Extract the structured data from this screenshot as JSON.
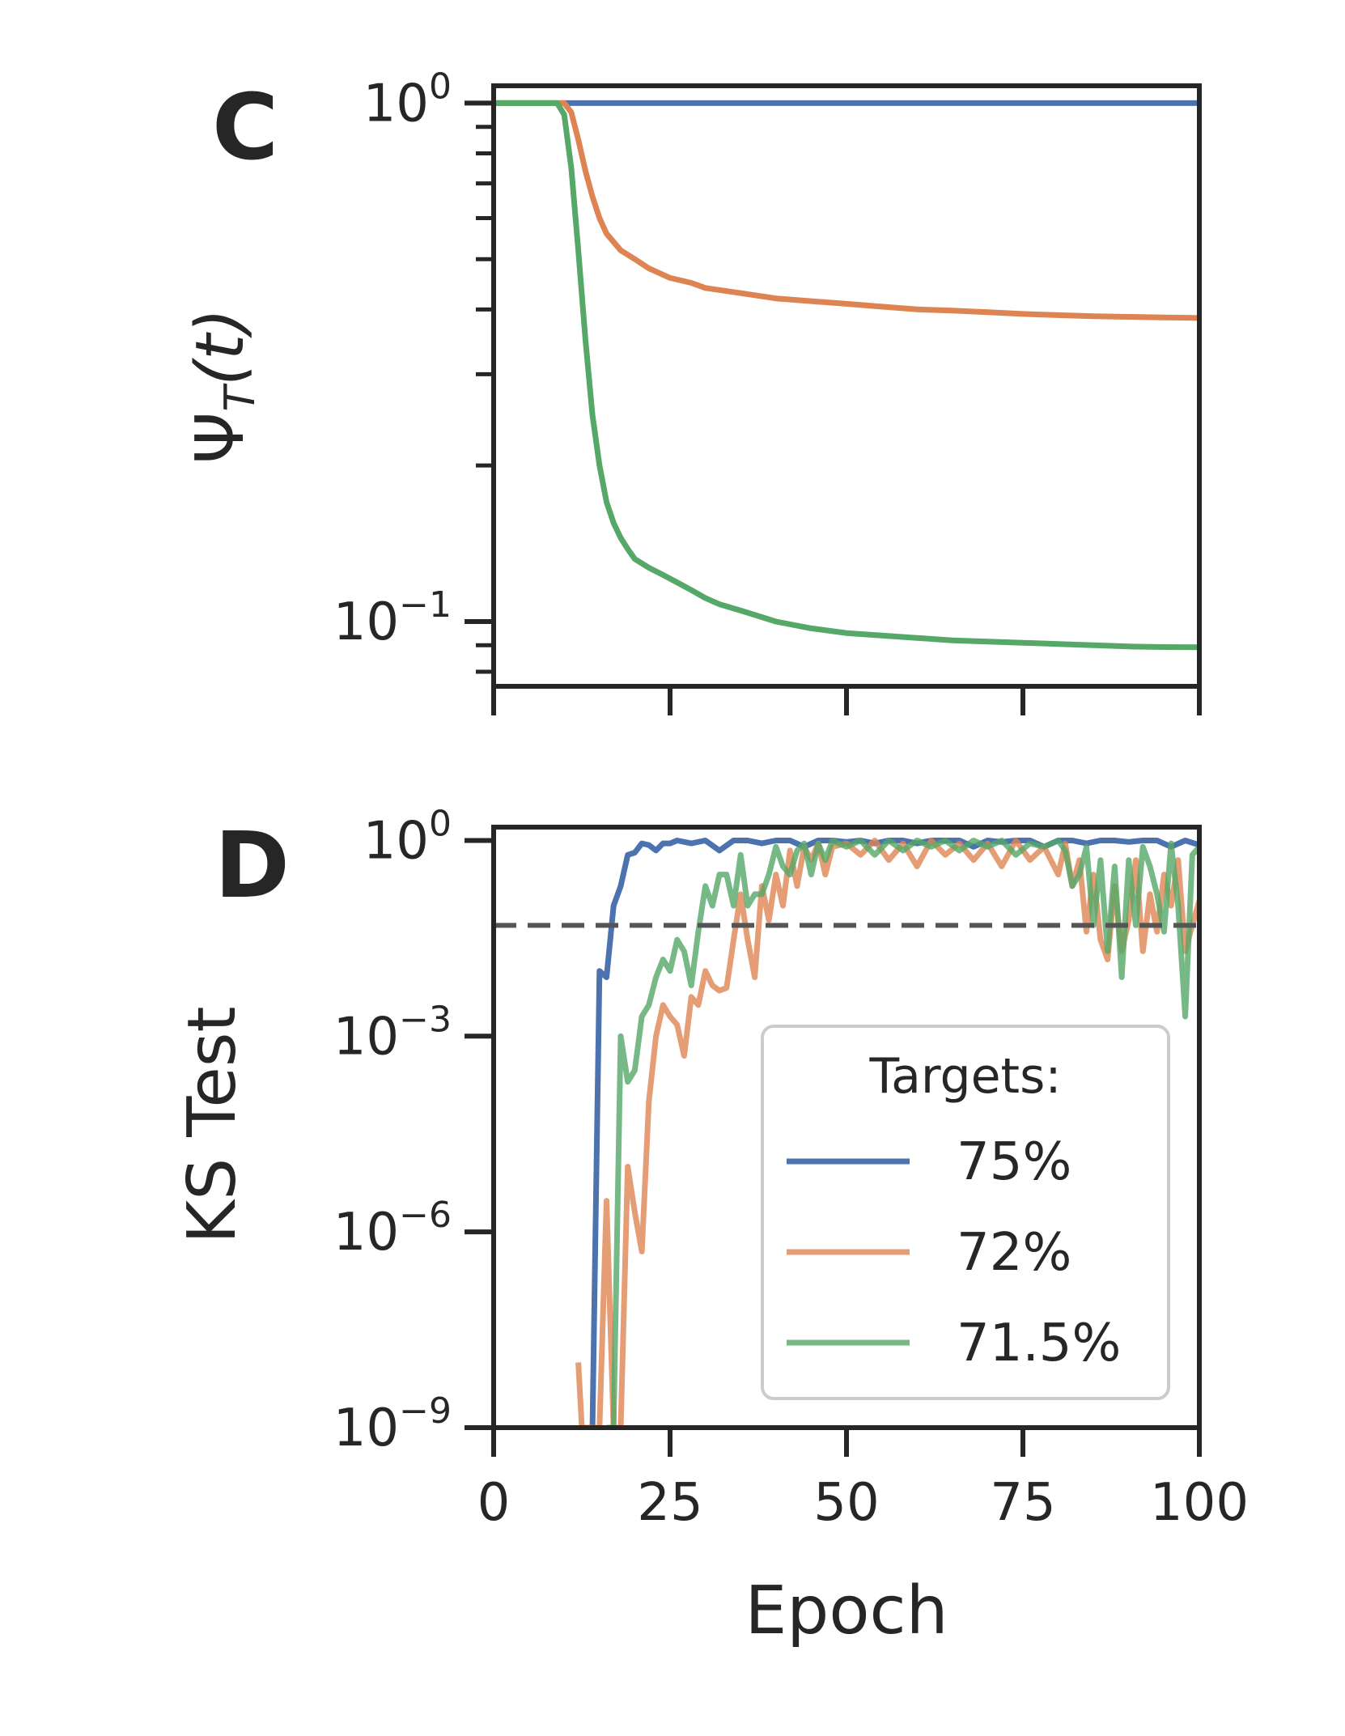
{
  "chart_data": [
    {
      "panel": "C",
      "type": "line",
      "yscale": "log",
      "xlim": [
        0,
        100
      ],
      "ylim": [
        0.075,
        1.08
      ],
      "xlabel": "",
      "ylabel": "Ψ_T(t)",
      "ylabel_base": "Ψ",
      "ylabel_sub": "T",
      "ylabel_rest": "(t)",
      "y_major_ticks": [
        {
          "value": 1,
          "base": "10",
          "exp": "0"
        },
        {
          "value": 0.1,
          "base": "10",
          "exp": "−1"
        }
      ],
      "x_ticks": [
        0,
        25,
        50,
        75,
        100
      ],
      "x_tick_labels_shown": false,
      "series": [
        {
          "name": "75%",
          "color": "#4c72b0",
          "x": [
            0,
            100
          ],
          "y": [
            1.0,
            1.0
          ]
        },
        {
          "name": "72%",
          "color": "#dd8452",
          "x": [
            0,
            9,
            10,
            11,
            12,
            13,
            14,
            15,
            16,
            18,
            20,
            22,
            25,
            28,
            30,
            35,
            40,
            45,
            50,
            55,
            60,
            65,
            70,
            75,
            80,
            85,
            90,
            95,
            100
          ],
          "y": [
            1.0,
            1.0,
            1.0,
            0.96,
            0.85,
            0.74,
            0.66,
            0.6,
            0.56,
            0.52,
            0.5,
            0.48,
            0.46,
            0.45,
            0.44,
            0.43,
            0.42,
            0.415,
            0.41,
            0.405,
            0.4,
            0.398,
            0.395,
            0.392,
            0.39,
            0.388,
            0.387,
            0.386,
            0.385
          ]
        },
        {
          "name": "71.5%",
          "color": "#55a868",
          "x": [
            0,
            9,
            10,
            11,
            12,
            13,
            14,
            15,
            16,
            17,
            18,
            19,
            20,
            22,
            24,
            26,
            28,
            30,
            32,
            35,
            38,
            40,
            45,
            50,
            55,
            60,
            65,
            70,
            75,
            80,
            85,
            90,
            95,
            100
          ],
          "y": [
            1.0,
            1.0,
            0.95,
            0.75,
            0.52,
            0.35,
            0.25,
            0.2,
            0.17,
            0.155,
            0.145,
            0.138,
            0.132,
            0.127,
            0.123,
            0.119,
            0.115,
            0.111,
            0.108,
            0.105,
            0.102,
            0.1,
            0.097,
            0.095,
            0.094,
            0.093,
            0.092,
            0.0915,
            0.091,
            0.0905,
            0.09,
            0.0895,
            0.0893,
            0.0892
          ]
        }
      ]
    },
    {
      "panel": "D",
      "type": "line",
      "yscale": "log",
      "xlim": [
        0,
        100
      ],
      "ylim": [
        1e-09,
        1.6
      ],
      "xlabel": "Epoch",
      "ylabel": "KS Test",
      "x_ticks": [
        0,
        25,
        50,
        75,
        100
      ],
      "x_tick_labels": [
        "0",
        "25",
        "50",
        "75",
        "100"
      ],
      "y_major_ticks": [
        {
          "value": 1,
          "base": "10",
          "exp": "0"
        },
        {
          "value": 0.001,
          "base": "10",
          "exp": "−3"
        },
        {
          "value": 1e-06,
          "base": "10",
          "exp": "−6"
        },
        {
          "value": 1e-09,
          "base": "10",
          "exp": "−9"
        }
      ],
      "reference_line": {
        "value": 0.05,
        "color": "#555555",
        "style": "dashed"
      },
      "legend": {
        "title": "Targets:",
        "position": "lower-right"
      },
      "series": [
        {
          "name": "75%",
          "color": "#4c72b0",
          "x": [
            14,
            15,
            16,
            17,
            18,
            19,
            20,
            21,
            22,
            23,
            24,
            25,
            26,
            28,
            30,
            32,
            34,
            36,
            38,
            40,
            42,
            44,
            46,
            48,
            50,
            52,
            54,
            56,
            58,
            60,
            62,
            64,
            66,
            68,
            70,
            72,
            74,
            76,
            78,
            80,
            82,
            84,
            86,
            88,
            90,
            92,
            94,
            96,
            98,
            100
          ],
          "y": [
            1e-09,
            0.01,
            0.008,
            0.1,
            0.2,
            0.6,
            0.65,
            0.9,
            0.85,
            0.7,
            0.9,
            0.9,
            1.0,
            0.9,
            1.0,
            0.7,
            1.0,
            1.0,
            0.9,
            1.0,
            1.0,
            0.8,
            1.0,
            1.0,
            0.95,
            1.0,
            0.9,
            1.0,
            1.0,
            0.9,
            1.0,
            1.0,
            1.0,
            0.8,
            1.0,
            0.95,
            1.0,
            1.0,
            0.8,
            1.0,
            1.0,
            0.9,
            1.0,
            1.0,
            0.95,
            1.0,
            1.0,
            0.8,
            1.0,
            0.85
          ]
        },
        {
          "name": "72%",
          "color": "#dd8452",
          "x": [
            12,
            12.5,
            13,
            14,
            15,
            16,
            17,
            18,
            19,
            20,
            21,
            22,
            23,
            24,
            25,
            26,
            27,
            28,
            29,
            30,
            31,
            32,
            33,
            34,
            35,
            36,
            37,
            38,
            39,
            40,
            41,
            42,
            43,
            44,
            45,
            46,
            47,
            48,
            50,
            52,
            54,
            56,
            58,
            60,
            62,
            64,
            66,
            68,
            70,
            72,
            74,
            76,
            78,
            80,
            81,
            82,
            83,
            84,
            85,
            86,
            87,
            88,
            89,
            90,
            91,
            92,
            93,
            94,
            95,
            96,
            97,
            98,
            99,
            100
          ],
          "y": [
            1e-08,
            1e-09,
            1e-09,
            1e-09,
            1e-09,
            3e-06,
            1e-09,
            1e-09,
            1e-05,
            2e-06,
            5e-07,
            0.0001,
            0.001,
            0.003,
            0.002,
            0.0015,
            0.0005,
            0.004,
            0.003,
            0.01,
            0.006,
            0.005,
            0.0055,
            0.03,
            0.15,
            0.03,
            0.008,
            0.2,
            0.06,
            0.3,
            0.1,
            0.7,
            0.2,
            0.8,
            0.5,
            0.9,
            0.3,
            0.8,
            0.9,
            0.6,
            1.0,
            0.5,
            0.9,
            0.4,
            1.0,
            0.6,
            0.9,
            0.5,
            0.9,
            0.4,
            1.0,
            0.5,
            0.8,
            0.3,
            0.9,
            0.2,
            0.5,
            0.04,
            0.3,
            0.03,
            0.015,
            0.2,
            0.02,
            0.06,
            0.5,
            0.02,
            0.15,
            0.04,
            0.3,
            0.1,
            0.5,
            0.02,
            0.05,
            0.12
          ]
        },
        {
          "name": "71.5%",
          "color": "#55a868",
          "x": [
            16,
            16.5,
            17,
            18,
            19,
            20,
            21,
            22,
            23,
            24,
            25,
            26,
            27,
            28,
            29,
            30,
            31,
            32,
            33,
            34,
            35,
            36,
            37,
            38,
            39,
            40,
            41,
            42,
            43,
            44,
            45,
            46,
            47,
            48,
            50,
            52,
            54,
            56,
            58,
            60,
            62,
            64,
            66,
            68,
            70,
            72,
            74,
            76,
            78,
            80,
            81,
            82,
            83,
            84,
            85,
            86,
            87,
            88,
            89,
            90,
            91,
            92,
            93,
            94,
            95,
            96,
            97,
            98,
            99,
            100
          ],
          "y": [
            1e-09,
            1e-09,
            1e-09,
            0.001,
            0.0002,
            0.0003,
            0.002,
            0.003,
            0.008,
            0.015,
            0.01,
            0.03,
            0.02,
            0.006,
            0.04,
            0.2,
            0.1,
            0.3,
            0.3,
            0.1,
            0.6,
            0.1,
            0.15,
            0.15,
            0.3,
            0.8,
            0.4,
            0.3,
            0.7,
            0.9,
            0.3,
            0.9,
            0.5,
            1.0,
            0.8,
            1.0,
            0.6,
            1.0,
            0.7,
            1.0,
            0.8,
            1.0,
            0.7,
            1.0,
            0.8,
            1.0,
            0.6,
            0.9,
            0.8,
            1.0,
            0.7,
            0.2,
            0.3,
            0.8,
            0.05,
            0.5,
            0.02,
            0.4,
            0.008,
            0.5,
            0.05,
            0.8,
            0.4,
            0.15,
            0.04,
            0.9,
            0.1,
            0.002,
            0.6,
            0.8
          ]
        }
      ]
    }
  ]
}
